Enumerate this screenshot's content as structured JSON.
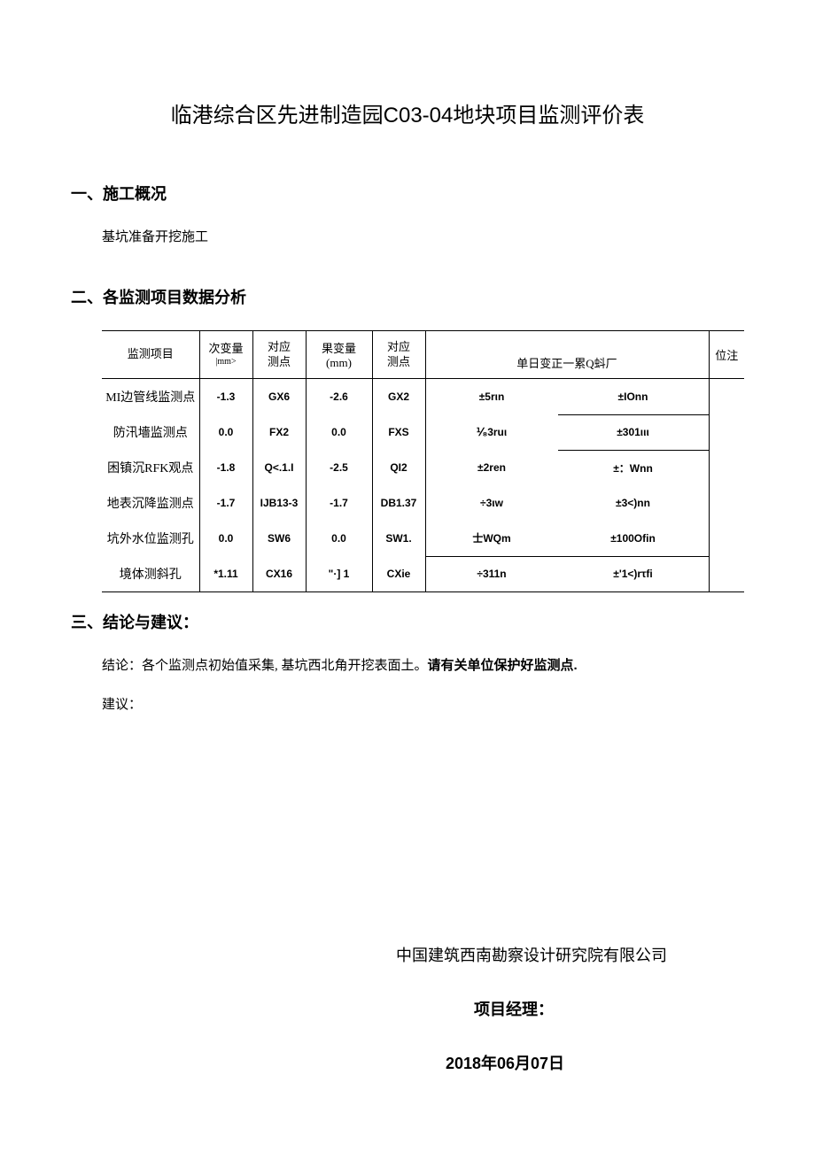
{
  "title": "临港综合区先进制造园C03-04地块项目监测评价表",
  "section1": {
    "heading": "一、施工概况",
    "text": "基坑准备开挖施工"
  },
  "section2": {
    "heading": "二、各监测项目数据分析",
    "table": {
      "headers": {
        "col0": "监测项目",
        "col1_top": "次变量",
        "col1_sub": "|mm>",
        "col2_top": "对应",
        "col2_bot": "测点",
        "col3": "果变量(mm)",
        "col4_top": "对应",
        "col4_bot": "测点",
        "col56": "单日变正一累Q蚪厂",
        "col7": "位注"
      },
      "rows": [
        {
          "c0": "MI边管线监测点",
          "c1": "-1.3",
          "c2": "GX6",
          "c3": "-2.6",
          "c4": "GX2",
          "c5": "±5rιn",
          "c6": "±IOnn",
          "c7": ""
        },
        {
          "c0": "防汛墻监测点",
          "c1": "0.0",
          "c2": "FX2",
          "c3": "0.0",
          "c4": "FXS",
          "c5": "⅟₈3ruι",
          "c6": "±301ιιι",
          "c7": ""
        },
        {
          "c0": "困镇沉RFK观点",
          "c1": "-1.8",
          "c2": "Q<.1.I",
          "c3": "-2.5",
          "c4": "QI2",
          "c5": "±2ren",
          "c6": "±：Wnn",
          "c7": ""
        },
        {
          "c0": "地表沉降监测点",
          "c1": "-1.7",
          "c2": "IJB13-3",
          "c3": "-1.7",
          "c4": "DB1.37",
          "c5": "÷3ιw",
          "c6": "±3<)nn",
          "c7": ""
        },
        {
          "c0": "坑外水位监测孔",
          "c1": "0.0",
          "c2": "SW6",
          "c3": "0.0",
          "c4": "SW1.",
          "c5": "士WQm",
          "c6": "±100Ofin",
          "c7": ""
        },
        {
          "c0": "境体测斜孔",
          "c1": "*1.11",
          "c2": "CX16",
          "c3": "\"·] 1",
          "c4": "CXie",
          "c5": "÷311n",
          "c6": "±'1<)rτfi",
          "c7": ""
        }
      ]
    }
  },
  "section3": {
    "heading": "三、结论与建议：",
    "conclusion_label": "结论：",
    "conclusion_text": "各个监测点初始值采集, 基坑西北角开挖表面土。",
    "conclusion_bold": "请有关单位保护好监测点.",
    "suggest": "建议："
  },
  "footer": {
    "company": "中国建筑西南勘察设计研究院有限公司",
    "pm": "项目经理：",
    "date": "2018年06月07日"
  }
}
